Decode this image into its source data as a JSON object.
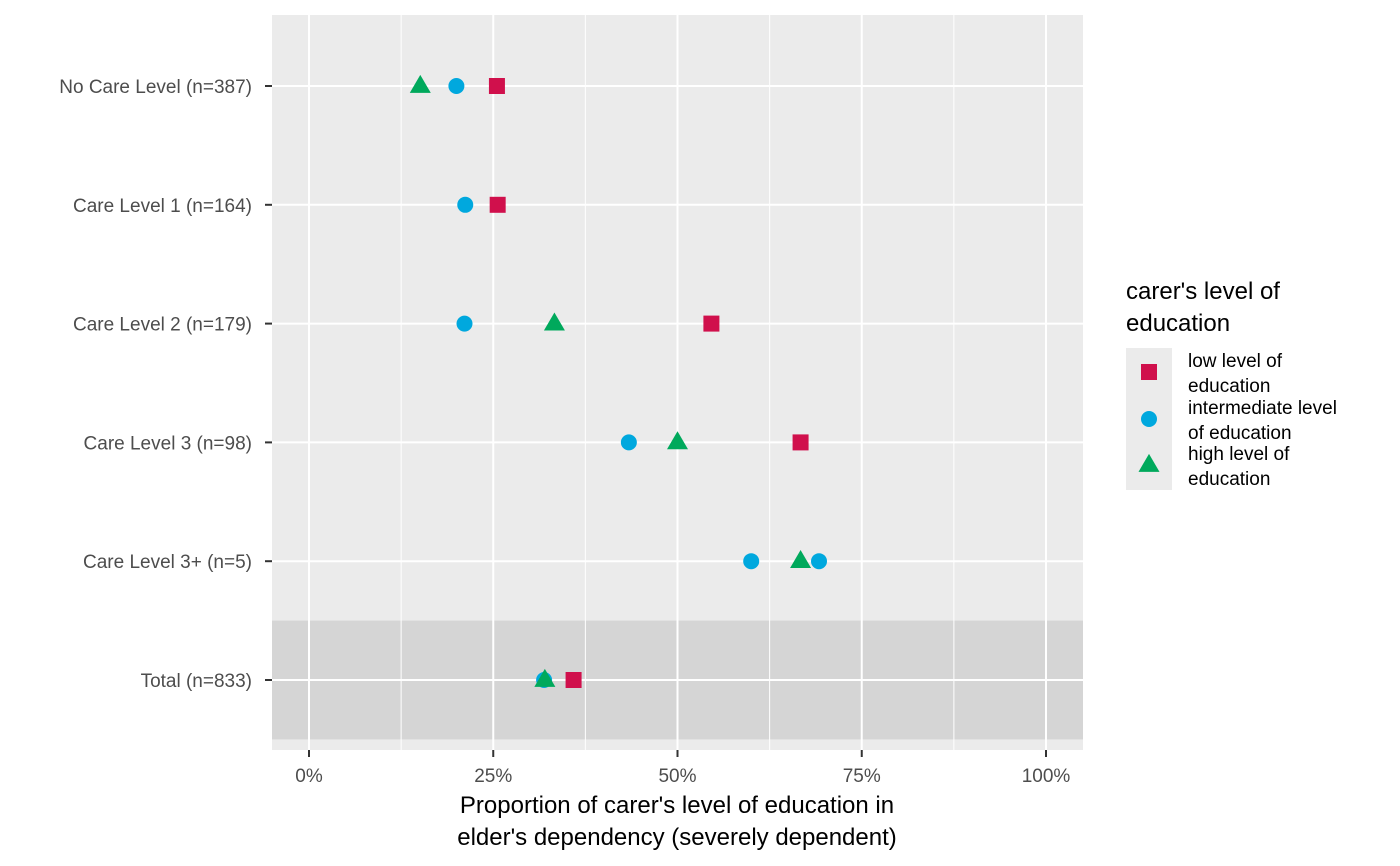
{
  "chart_data": {
    "type": "scatter",
    "orientation": "horizontal-categorical-y",
    "title": "",
    "xlabel_lines": [
      "Proportion of carer's level of education in",
      "elder's dependency (severely dependent)"
    ],
    "ylabel": "",
    "xlim": [
      0,
      1
    ],
    "x_ticks": [
      0,
      0.25,
      0.5,
      0.75,
      1.0
    ],
    "x_tick_labels": [
      "0%",
      "25%",
      "50%",
      "75%",
      "100%"
    ],
    "categories": [
      "No Care Level (n=387)",
      "Care Level 1 (n=164)",
      "Care Level 2 (n=179)",
      "Care Level 3 (n=98)",
      "Care Level 3+ (n=5)",
      "Total (n=833)"
    ],
    "highlighted_category": "Total (n=833)",
    "grid": true,
    "legend": {
      "position": "right",
      "title_lines": [
        "carer's level of",
        "education"
      ]
    },
    "series": [
      {
        "name_lines": [
          "low level of",
          "education"
        ],
        "shape": "square",
        "color": "#D0104C",
        "values": [
          0.255,
          0.256,
          0.546,
          0.667,
          null,
          0.359
        ]
      },
      {
        "name_lines": [
          "intermediate level",
          "of education"
        ],
        "shape": "circle",
        "color": "#00A8DE",
        "values": [
          0.2,
          0.212,
          0.211,
          0.434,
          [
            0.6,
            0.692
          ],
          0.319
        ]
      },
      {
        "name_lines": [
          "high level of",
          "education"
        ],
        "shape": "triangle",
        "color": "#00A95C",
        "values": [
          0.151,
          null,
          0.333,
          0.5,
          0.667,
          0.32
        ]
      }
    ],
    "colors": {
      "panel_background": "#EBEBEB",
      "highlight_band": "#D5D5D5",
      "grid": "#FFFFFF",
      "tick_text": "#4D4D4D",
      "legend_key_background": "#EBEBEB"
    }
  }
}
